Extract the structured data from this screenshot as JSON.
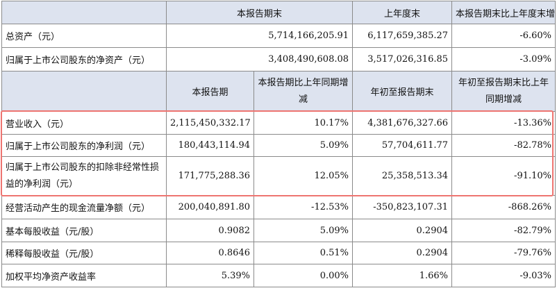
{
  "header1": {
    "blank": "",
    "current": "本报告期末",
    "prev_year_end": "上年度末",
    "change": "本报告期末比上年度末增减"
  },
  "top_rows": [
    {
      "label": "总资产（元）",
      "current": "5,714,166,205.91",
      "prev": "6,117,659,385.27",
      "change": "-6.60%"
    },
    {
      "label": "归属于上市公司股东的净资产（元）",
      "current": "3,408,490,608.08",
      "prev": "3,517,026,316.85",
      "change": "-3.09%"
    }
  ],
  "header2": {
    "blank": "",
    "period": "本报告期",
    "period_change": "本报告期比上年同期增减",
    "ytd": "年初至报告期末",
    "ytd_change": "年初至报告期末比上年同期增减"
  },
  "bottom_rows": [
    {
      "label": "营业收入（元）",
      "period": "2,115,450,332.17",
      "period_change": "10.17%",
      "ytd": "4,381,676,327.66",
      "ytd_change": "-13.36%"
    },
    {
      "label": "归属于上市公司股东的净利润（元）",
      "period": "180,443,114.94",
      "period_change": "5.09%",
      "ytd": "57,704,611.77",
      "ytd_change": "-82.78%"
    },
    {
      "label": "归属于上市公司股东的扣除非经常性损益的净利润（元）",
      "period": "171,775,288.36",
      "period_change": "12.05%",
      "ytd": "25,358,513.34",
      "ytd_change": "-91.10%"
    },
    {
      "label": "经营活动产生的现金流量净额（元）",
      "period": "200,040,891.80",
      "period_change": "-12.53%",
      "ytd": "-350,823,107.31",
      "ytd_change": "-868.26%"
    },
    {
      "label": "基本每股收益（元/股）",
      "period": "0.9082",
      "period_change": "5.09%",
      "ytd": "0.2904",
      "ytd_change": "-82.79%"
    },
    {
      "label": "稀释每股收益（元/股）",
      "period": "0.8646",
      "period_change": "0.51%",
      "ytd": "0.2904",
      "ytd_change": "-79.76%"
    },
    {
      "label": "加权平均净资产收益率",
      "period": "5.39%",
      "period_change": "0.00%",
      "ytd": "1.66%",
      "ytd_change": "-9.03%"
    }
  ],
  "colors": {
    "header_bg": "#dde3ef",
    "highlight_border": "#ee7470",
    "grid": "#8a8a8a"
  }
}
